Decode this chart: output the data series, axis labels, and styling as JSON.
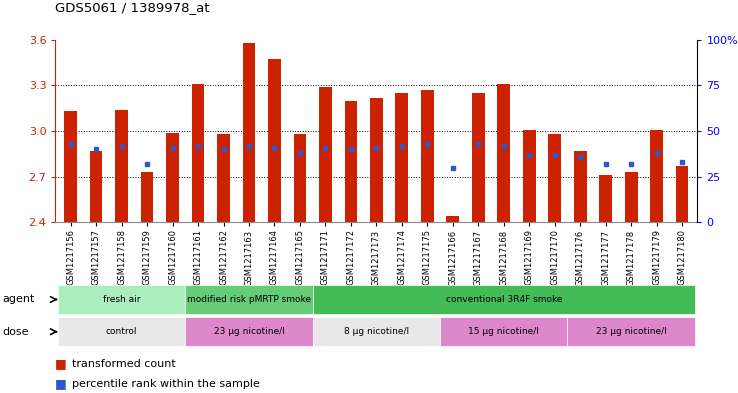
{
  "title": "GDS5061 / 1389978_at",
  "samples": [
    "GSM1217156",
    "GSM1217157",
    "GSM1217158",
    "GSM1217159",
    "GSM1217160",
    "GSM1217161",
    "GSM1217162",
    "GSM1217163",
    "GSM1217164",
    "GSM1217165",
    "GSM1217171",
    "GSM1217172",
    "GSM1217173",
    "GSM1217174",
    "GSM1217175",
    "GSM1217166",
    "GSM1217167",
    "GSM1217168",
    "GSM1217169",
    "GSM1217170",
    "GSM1217176",
    "GSM1217177",
    "GSM1217178",
    "GSM1217179",
    "GSM1217180"
  ],
  "red_values": [
    3.13,
    2.87,
    3.14,
    2.73,
    2.99,
    3.31,
    2.98,
    3.58,
    3.47,
    2.98,
    3.29,
    3.2,
    3.22,
    3.25,
    3.27,
    2.44,
    3.25,
    3.31,
    3.01,
    2.98,
    2.87,
    2.71,
    2.73,
    3.01,
    2.77
  ],
  "blue_values": [
    43,
    40,
    42,
    32,
    41,
    42,
    40,
    42,
    41,
    38,
    41,
    40,
    41,
    42,
    43,
    30,
    43,
    42,
    37,
    37,
    36,
    32,
    32,
    38,
    33
  ],
  "y_min": 2.4,
  "y_max": 3.6,
  "y_ticks": [
    2.4,
    2.7,
    3.0,
    3.3,
    3.6
  ],
  "right_y_ticks": [
    0,
    25,
    50,
    75,
    100
  ],
  "right_y_labels": [
    "0",
    "25",
    "50",
    "75",
    "100%"
  ],
  "bar_color": "#cc2200",
  "blue_color": "#3355cc",
  "agent_groups": [
    {
      "label": "fresh air",
      "start": 0,
      "end": 5,
      "color": "#aaeebb"
    },
    {
      "label": "modified risk pMRTP smoke",
      "start": 5,
      "end": 10,
      "color": "#66cc77"
    },
    {
      "label": "conventional 3R4F smoke",
      "start": 10,
      "end": 25,
      "color": "#44bb55"
    }
  ],
  "dose_groups": [
    {
      "label": "control",
      "start": 0,
      "end": 5,
      "color": "#e8e8e8"
    },
    {
      "label": "23 μg nicotine/l",
      "start": 5,
      "end": 10,
      "color": "#dd88cc"
    },
    {
      "label": "8 μg nicotine/l",
      "start": 10,
      "end": 15,
      "color": "#e8e8e8"
    },
    {
      "label": "15 μg nicotine/l",
      "start": 15,
      "end": 20,
      "color": "#dd88cc"
    },
    {
      "label": "23 μg nicotine/l",
      "start": 20,
      "end": 25,
      "color": "#dd88cc"
    }
  ],
  "legend_red": "transformed count",
  "legend_blue": "percentile rank within the sample",
  "agent_label": "agent",
  "dose_label": "dose",
  "grid_lines": [
    2.7,
    3.0,
    3.3
  ]
}
